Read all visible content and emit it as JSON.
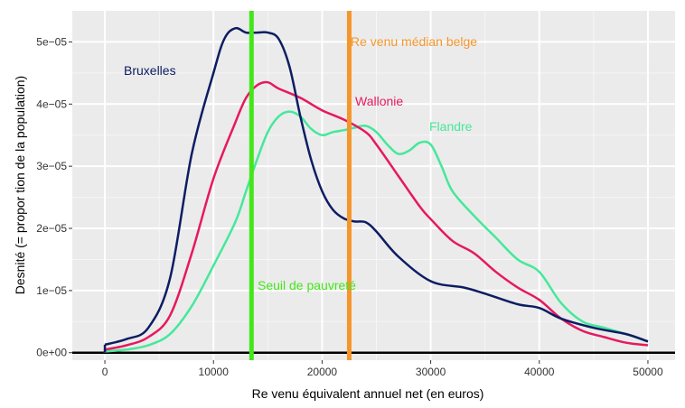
{
  "chart_data": {
    "type": "line",
    "xlabel": "Re venu équivalent annuel net (en euros)",
    "ylabel": "Desnité (= propor tion de la population)",
    "xlim": [
      -3000,
      52500
    ],
    "ylim": [
      -1.2e-06,
      5.5e-05
    ],
    "x_ticks": [
      0,
      10000,
      20000,
      30000,
      40000,
      50000
    ],
    "x_tick_labels": [
      "0",
      "10000",
      "20000",
      "30000",
      "40000",
      "50000"
    ],
    "y_ticks": [
      0,
      1e-05,
      2e-05,
      3e-05,
      4e-05,
      5e-05
    ],
    "y_tick_labels": [
      "0e+00",
      "1e−05",
      "2e−05",
      "3e−05",
      "4e−05",
      "5e−05"
    ],
    "grid": true,
    "background": "#ebebeb",
    "series": [
      {
        "name": "Bruxelles",
        "color": "#0d1d63",
        "x": [
          0,
          2000,
          4000,
          6000,
          8000,
          10000,
          11000,
          12000,
          13000,
          14000,
          15000,
          16000,
          17000,
          18000,
          19000,
          20000,
          21000,
          22000,
          23000,
          24000,
          25000,
          27000,
          30000,
          33000,
          35000,
          38000,
          40000,
          42000,
          45000,
          48000,
          50000
        ],
        "values": [
          1.3e-06,
          2.2e-06,
          4e-06,
          1.2e-05,
          3.2e-05,
          4.5e-05,
          5.05e-05,
          5.22e-05,
          5.15e-05,
          5.15e-05,
          5.15e-05,
          5.05e-05,
          4.6e-05,
          3.8e-05,
          3.1e-05,
          2.6e-05,
          2.3e-05,
          2.16e-05,
          2.11e-05,
          2.1e-05,
          1.95e-05,
          1.55e-05,
          1.15e-05,
          1.05e-05,
          9.5e-06,
          7.8e-06,
          7.2e-06,
          5.5e-06,
          4e-06,
          3e-06,
          1.8e-06
        ]
      },
      {
        "name": "Wallonie",
        "color": "#e6195e",
        "x": [
          0,
          2000,
          4000,
          6000,
          8000,
          10000,
          12000,
          13000,
          14000,
          15000,
          16000,
          18000,
          20000,
          22000,
          24000,
          25000,
          27000,
          29000,
          30000,
          32000,
          34000,
          36000,
          38000,
          40000,
          42000,
          44000,
          46000,
          48000,
          50000
        ],
        "values": [
          5e-07,
          1.2e-06,
          2.5e-06,
          6e-06,
          1.6e-05,
          2.8e-05,
          3.7e-05,
          4.1e-05,
          4.3e-05,
          4.35e-05,
          4.25e-05,
          4.1e-05,
          3.9e-05,
          3.75e-05,
          3.55e-05,
          3.35e-05,
          2.85e-05,
          2.35e-05,
          2.15e-05,
          1.8e-05,
          1.6e-05,
          1.3e-05,
          1.05e-05,
          8.5e-06,
          5.5e-06,
          3.5e-06,
          2.5e-06,
          1.6e-06,
          1.2e-06
        ]
      },
      {
        "name": "Flandre",
        "color": "#45e89a",
        "x": [
          0,
          2000,
          4000,
          6000,
          8000,
          10000,
          12000,
          13000,
          14000,
          15000,
          16000,
          17000,
          18000,
          19000,
          20000,
          21000,
          22000,
          23000,
          24000,
          25000,
          26000,
          27000,
          28000,
          29000,
          30000,
          31000,
          32000,
          34000,
          36000,
          38000,
          40000,
          42000,
          44000,
          46000,
          48000,
          50000
        ],
        "values": [
          2e-07,
          5e-07,
          1.2e-06,
          3e-06,
          7.5e-06,
          1.4e-05,
          2.1e-05,
          2.6e-05,
          3.1e-05,
          3.55e-05,
          3.8e-05,
          3.88e-05,
          3.8e-05,
          3.6e-05,
          3.5e-05,
          3.55e-05,
          3.58e-05,
          3.62e-05,
          3.65e-05,
          3.55e-05,
          3.35e-05,
          3.2e-05,
          3.25e-05,
          3.38e-05,
          3.35e-05,
          3e-05,
          2.6e-05,
          2.2e-05,
          1.85e-05,
          1.5e-05,
          1.3e-05,
          8e-06,
          5e-06,
          4e-06,
          3e-06,
          1.8e-06
        ]
      }
    ],
    "vertical_lines": [
      {
        "x": 13500,
        "color": "#44e61a",
        "label": "Seuil de pauvreté"
      },
      {
        "x": 22500,
        "color": "#f5962a",
        "label": "Re venu médian belge"
      }
    ],
    "annotations": [
      {
        "text": "Bruxelles",
        "color": "#0d1d63"
      },
      {
        "text": "Wallonie",
        "color": "#e6195e"
      },
      {
        "text": "Flandre",
        "color": "#45e89a"
      }
    ]
  }
}
